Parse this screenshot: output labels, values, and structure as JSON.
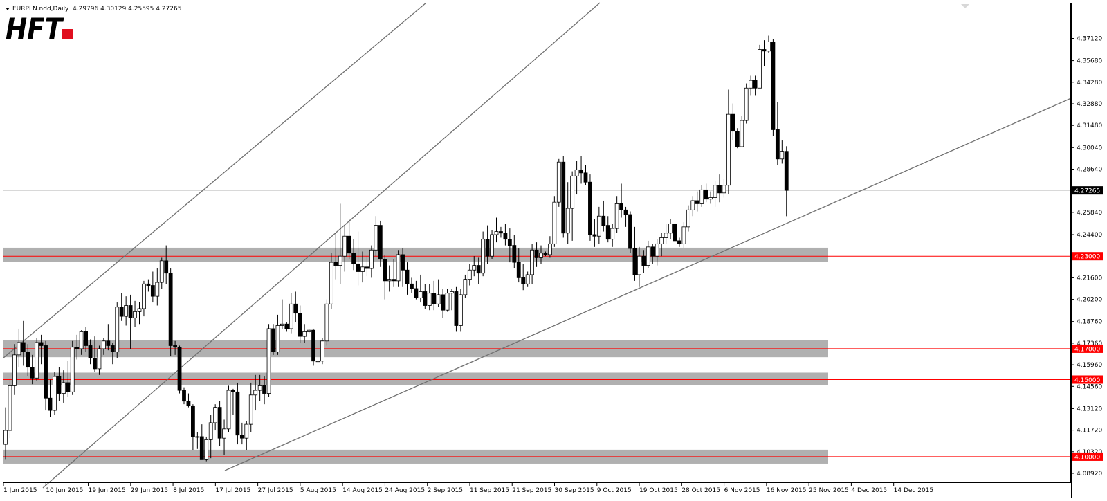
{
  "header": {
    "title": "EURPLN.ndd,Daily",
    "ohlc": "4.29796 4.30129 4.25595 4.27265"
  },
  "logo": {
    "text": "HFT"
  },
  "colors": {
    "background": "#ffffff",
    "candle_up_fill": "#ffffff",
    "candle_down_fill": "#000000",
    "candle_outline": "#000000",
    "zone": "#b0b0b0",
    "support_line": "#ff0000",
    "trendline": "#707070",
    "current_price_line": "#c0c0c0",
    "logo_text": "#000000",
    "logo_accent": "#e0101f"
  },
  "chart_data": {
    "type": "candlestick",
    "symbol": "EURPLN",
    "timeframe": "Daily",
    "ylim": [
      4.0892,
      4.3795
    ],
    "y_ticks": [
      "4.37120",
      "4.35680",
      "4.34280",
      "4.32880",
      "4.31480",
      "4.30040",
      "4.28640",
      "4.27240",
      "4.25840",
      "4.24400",
      "4.23000",
      "4.21600",
      "4.20200",
      "4.18760",
      "4.17360",
      "4.15960",
      "4.14560",
      "4.13120",
      "4.11720",
      "4.10320",
      "4.08920"
    ],
    "x_labels": [
      "1 Jun 2015",
      "10 Jun 2015",
      "19 Jun 2015",
      "29 Jun 2015",
      "8 Jul 2015",
      "17 Jul 2015",
      "27 Jul 2015",
      "5 Aug 2015",
      "14 Aug 2015",
      "24 Aug 2015",
      "2 Sep 2015",
      "11 Sep 2015",
      "21 Sep 2015",
      "30 Sep 2015",
      "9 Oct 2015",
      "19 Oct 2015",
      "28 Oct 2015",
      "6 Nov 2015",
      "16 Nov 2015",
      "25 Nov 2015",
      "4 Dec 2015",
      "14 Dec 2015"
    ],
    "current_price": {
      "label": "4.27265",
      "value": 4.27265
    },
    "levels": [
      {
        "label": "4.23000",
        "value": 4.23
      },
      {
        "label": "4.17000",
        "value": 4.17
      },
      {
        "label": "4.15000",
        "value": 4.15
      },
      {
        "label": "4.10000",
        "value": 4.1
      }
    ],
    "zones": [
      {
        "from": 4.2265,
        "to": 4.2355
      },
      {
        "from": 4.1645,
        "to": 4.1755
      },
      {
        "from": 4.1465,
        "to": 4.1545
      },
      {
        "from": 4.0955,
        "to": 4.1045
      }
    ],
    "candles": [
      {
        "o": 4.108,
        "h": 4.132,
        "l": 4.098,
        "c": 4.117
      },
      {
        "o": 4.117,
        "h": 4.15,
        "l": 4.112,
        "c": 4.146
      },
      {
        "o": 4.146,
        "h": 4.173,
        "l": 4.14,
        "c": 4.166
      },
      {
        "o": 4.166,
        "h": 4.183,
        "l": 4.158,
        "c": 4.174
      },
      {
        "o": 4.174,
        "h": 4.188,
        "l": 4.159,
        "c": 4.168
      },
      {
        "o": 4.168,
        "h": 4.173,
        "l": 4.152,
        "c": 4.158
      },
      {
        "o": 4.158,
        "h": 4.166,
        "l": 4.147,
        "c": 4.151
      },
      {
        "o": 4.151,
        "h": 4.177,
        "l": 4.149,
        "c": 4.174
      },
      {
        "o": 4.174,
        "h": 4.179,
        "l": 4.16,
        "c": 4.172
      },
      {
        "o": 4.172,
        "h": 4.175,
        "l": 4.13,
        "c": 4.138
      },
      {
        "o": 4.138,
        "h": 4.15,
        "l": 4.126,
        "c": 4.13
      },
      {
        "o": 4.13,
        "h": 4.155,
        "l": 4.127,
        "c": 4.152
      },
      {
        "o": 4.152,
        "h": 4.158,
        "l": 4.136,
        "c": 4.141
      },
      {
        "o": 4.141,
        "h": 4.156,
        "l": 4.135,
        "c": 4.148
      },
      {
        "o": 4.148,
        "h": 4.162,
        "l": 4.139,
        "c": 4.142
      },
      {
        "o": 4.142,
        "h": 4.175,
        "l": 4.14,
        "c": 4.171
      },
      {
        "o": 4.171,
        "h": 4.179,
        "l": 4.163,
        "c": 4.17
      },
      {
        "o": 4.17,
        "h": 4.182,
        "l": 4.166,
        "c": 4.181
      },
      {
        "o": 4.181,
        "h": 4.184,
        "l": 4.168,
        "c": 4.172
      },
      {
        "o": 4.172,
        "h": 4.176,
        "l": 4.16,
        "c": 4.164
      },
      {
        "o": 4.164,
        "h": 4.178,
        "l": 4.155,
        "c": 4.157
      },
      {
        "o": 4.157,
        "h": 4.172,
        "l": 4.153,
        "c": 4.17
      },
      {
        "o": 4.17,
        "h": 4.177,
        "l": 4.166,
        "c": 4.175
      },
      {
        "o": 4.175,
        "h": 4.186,
        "l": 4.169,
        "c": 4.172
      },
      {
        "o": 4.172,
        "h": 4.174,
        "l": 4.16,
        "c": 4.168
      },
      {
        "o": 4.168,
        "h": 4.2,
        "l": 4.164,
        "c": 4.197
      },
      {
        "o": 4.197,
        "h": 4.206,
        "l": 4.188,
        "c": 4.191
      },
      {
        "o": 4.191,
        "h": 4.204,
        "l": 4.185,
        "c": 4.198
      },
      {
        "o": 4.198,
        "h": 4.205,
        "l": 4.17,
        "c": 4.19
      },
      {
        "o": 4.19,
        "h": 4.201,
        "l": 4.184,
        "c": 4.194
      },
      {
        "o": 4.194,
        "h": 4.2,
        "l": 4.186,
        "c": 4.196
      },
      {
        "o": 4.196,
        "h": 4.214,
        "l": 4.191,
        "c": 4.212
      },
      {
        "o": 4.212,
        "h": 4.215,
        "l": 4.207,
        "c": 4.211
      },
      {
        "o": 4.211,
        "h": 4.22,
        "l": 4.2,
        "c": 4.204
      },
      {
        "o": 4.204,
        "h": 4.222,
        "l": 4.198,
        "c": 4.213
      },
      {
        "o": 4.213,
        "h": 4.229,
        "l": 4.209,
        "c": 4.227
      },
      {
        "o": 4.227,
        "h": 4.237,
        "l": 4.212,
        "c": 4.219
      },
      {
        "o": 4.219,
        "h": 4.222,
        "l": 4.165,
        "c": 4.172
      },
      {
        "o": 4.172,
        "h": 4.175,
        "l": 4.166,
        "c": 4.171
      },
      {
        "o": 4.171,
        "h": 4.172,
        "l": 4.141,
        "c": 4.143
      },
      {
        "o": 4.143,
        "h": 4.145,
        "l": 4.134,
        "c": 4.136
      },
      {
        "o": 4.136,
        "h": 4.141,
        "l": 4.132,
        "c": 4.133
      },
      {
        "o": 4.133,
        "h": 4.134,
        "l": 4.104,
        "c": 4.113
      },
      {
        "o": 4.113,
        "h": 4.116,
        "l": 4.105,
        "c": 4.113
      },
      {
        "o": 4.113,
        "h": 4.121,
        "l": 4.098,
        "c": 4.098
      },
      {
        "o": 4.098,
        "h": 4.113,
        "l": 4.097,
        "c": 4.111
      },
      {
        "o": 4.111,
        "h": 4.127,
        "l": 4.099,
        "c": 4.122
      },
      {
        "o": 4.122,
        "h": 4.134,
        "l": 4.117,
        "c": 4.132
      },
      {
        "o": 4.132,
        "h": 4.136,
        "l": 4.107,
        "c": 4.112
      },
      {
        "o": 4.112,
        "h": 4.124,
        "l": 4.101,
        "c": 4.118
      },
      {
        "o": 4.118,
        "h": 4.146,
        "l": 4.116,
        "c": 4.143
      },
      {
        "o": 4.143,
        "h": 4.144,
        "l": 4.127,
        "c": 4.142
      },
      {
        "o": 4.142,
        "h": 4.148,
        "l": 4.108,
        "c": 4.114
      },
      {
        "o": 4.114,
        "h": 4.122,
        "l": 4.108,
        "c": 4.112
      },
      {
        "o": 4.112,
        "h": 4.123,
        "l": 4.104,
        "c": 4.121
      },
      {
        "o": 4.121,
        "h": 4.148,
        "l": 4.116,
        "c": 4.14
      },
      {
        "o": 4.14,
        "h": 4.153,
        "l": 4.13,
        "c": 4.143
      },
      {
        "o": 4.143,
        "h": 4.153,
        "l": 4.136,
        "c": 4.146
      },
      {
        "o": 4.146,
        "h": 4.152,
        "l": 4.134,
        "c": 4.141
      },
      {
        "o": 4.141,
        "h": 4.186,
        "l": 4.139,
        "c": 4.183
      },
      {
        "o": 4.183,
        "h": 4.186,
        "l": 4.166,
        "c": 4.168
      },
      {
        "o": 4.168,
        "h": 4.192,
        "l": 4.166,
        "c": 4.185
      },
      {
        "o": 4.185,
        "h": 4.202,
        "l": 4.183,
        "c": 4.186
      },
      {
        "o": 4.186,
        "h": 4.187,
        "l": 4.181,
        "c": 4.183
      },
      {
        "o": 4.183,
        "h": 4.206,
        "l": 4.18,
        "c": 4.199
      },
      {
        "o": 4.199,
        "h": 4.207,
        "l": 4.187,
        "c": 4.193
      },
      {
        "o": 4.193,
        "h": 4.198,
        "l": 4.174,
        "c": 4.178
      },
      {
        "o": 4.178,
        "h": 4.186,
        "l": 4.174,
        "c": 4.181
      },
      {
        "o": 4.181,
        "h": 4.183,
        "l": 4.18,
        "c": 4.182
      },
      {
        "o": 4.182,
        "h": 4.183,
        "l": 4.159,
        "c": 4.162
      },
      {
        "o": 4.162,
        "h": 4.17,
        "l": 4.158,
        "c": 4.162
      },
      {
        "o": 4.162,
        "h": 4.177,
        "l": 4.16,
        "c": 4.175
      },
      {
        "o": 4.175,
        "h": 4.202,
        "l": 4.172,
        "c": 4.199
      },
      {
        "o": 4.199,
        "h": 4.232,
        "l": 4.196,
        "c": 4.226
      },
      {
        "o": 4.226,
        "h": 4.245,
        "l": 4.215,
        "c": 4.224
      },
      {
        "o": 4.224,
        "h": 4.264,
        "l": 4.212,
        "c": 4.23
      },
      {
        "o": 4.23,
        "h": 4.25,
        "l": 4.22,
        "c": 4.243
      },
      {
        "o": 4.243,
        "h": 4.254,
        "l": 4.228,
        "c": 4.232
      },
      {
        "o": 4.232,
        "h": 4.241,
        "l": 4.221,
        "c": 4.225
      },
      {
        "o": 4.225,
        "h": 4.246,
        "l": 4.211,
        "c": 4.22
      },
      {
        "o": 4.22,
        "h": 4.233,
        "l": 4.213,
        "c": 4.223
      },
      {
        "o": 4.223,
        "h": 4.23,
        "l": 4.217,
        "c": 4.222
      },
      {
        "o": 4.222,
        "h": 4.237,
        "l": 4.216,
        "c": 4.234
      },
      {
        "o": 4.234,
        "h": 4.256,
        "l": 4.23,
        "c": 4.25
      },
      {
        "o": 4.25,
        "h": 4.253,
        "l": 4.223,
        "c": 4.228
      },
      {
        "o": 4.228,
        "h": 4.231,
        "l": 4.202,
        "c": 4.214
      },
      {
        "o": 4.214,
        "h": 4.224,
        "l": 4.207,
        "c": 4.215
      },
      {
        "o": 4.215,
        "h": 4.228,
        "l": 4.21,
        "c": 4.214
      },
      {
        "o": 4.214,
        "h": 4.234,
        "l": 4.21,
        "c": 4.231
      },
      {
        "o": 4.231,
        "h": 4.235,
        "l": 4.21,
        "c": 4.221
      },
      {
        "o": 4.221,
        "h": 4.226,
        "l": 4.205,
        "c": 4.212
      },
      {
        "o": 4.212,
        "h": 4.216,
        "l": 4.206,
        "c": 4.209
      },
      {
        "o": 4.209,
        "h": 4.214,
        "l": 4.202,
        "c": 4.203
      },
      {
        "o": 4.203,
        "h": 4.218,
        "l": 4.2,
        "c": 4.207
      },
      {
        "o": 4.207,
        "h": 4.212,
        "l": 4.196,
        "c": 4.198
      },
      {
        "o": 4.198,
        "h": 4.212,
        "l": 4.195,
        "c": 4.206
      },
      {
        "o": 4.206,
        "h": 4.214,
        "l": 4.195,
        "c": 4.199
      },
      {
        "o": 4.199,
        "h": 4.215,
        "l": 4.197,
        "c": 4.205
      },
      {
        "o": 4.205,
        "h": 4.209,
        "l": 4.19,
        "c": 4.195
      },
      {
        "o": 4.195,
        "h": 4.209,
        "l": 4.194,
        "c": 4.206
      },
      {
        "o": 4.206,
        "h": 4.209,
        "l": 4.195,
        "c": 4.207
      },
      {
        "o": 4.207,
        "h": 4.21,
        "l": 4.181,
        "c": 4.185
      },
      {
        "o": 4.185,
        "h": 4.209,
        "l": 4.181,
        "c": 4.205
      },
      {
        "o": 4.205,
        "h": 4.218,
        "l": 4.203,
        "c": 4.215
      },
      {
        "o": 4.215,
        "h": 4.225,
        "l": 4.211,
        "c": 4.221
      },
      {
        "o": 4.221,
        "h": 4.23,
        "l": 4.217,
        "c": 4.224
      },
      {
        "o": 4.224,
        "h": 4.229,
        "l": 4.212,
        "c": 4.219
      },
      {
        "o": 4.219,
        "h": 4.246,
        "l": 4.217,
        "c": 4.241
      },
      {
        "o": 4.241,
        "h": 4.25,
        "l": 4.225,
        "c": 4.23
      },
      {
        "o": 4.23,
        "h": 4.247,
        "l": 4.228,
        "c": 4.244
      },
      {
        "o": 4.244,
        "h": 4.255,
        "l": 4.239,
        "c": 4.246
      },
      {
        "o": 4.246,
        "h": 4.249,
        "l": 4.242,
        "c": 4.245
      },
      {
        "o": 4.245,
        "h": 4.251,
        "l": 4.237,
        "c": 4.241
      },
      {
        "o": 4.241,
        "h": 4.248,
        "l": 4.226,
        "c": 4.237
      },
      {
        "o": 4.237,
        "h": 4.244,
        "l": 4.222,
        "c": 4.226
      },
      {
        "o": 4.226,
        "h": 4.235,
        "l": 4.213,
        "c": 4.216
      },
      {
        "o": 4.216,
        "h": 4.225,
        "l": 4.208,
        "c": 4.212
      },
      {
        "o": 4.212,
        "h": 4.22,
        "l": 4.21,
        "c": 4.218
      },
      {
        "o": 4.218,
        "h": 4.238,
        "l": 4.212,
        "c": 4.234
      },
      {
        "o": 4.234,
        "h": 4.239,
        "l": 4.223,
        "c": 4.229
      },
      {
        "o": 4.229,
        "h": 4.237,
        "l": 4.225,
        "c": 4.232
      },
      {
        "o": 4.232,
        "h": 4.233,
        "l": 4.23,
        "c": 4.231
      },
      {
        "o": 4.231,
        "h": 4.243,
        "l": 4.229,
        "c": 4.238
      },
      {
        "o": 4.238,
        "h": 4.269,
        "l": 4.236,
        "c": 4.265
      },
      {
        "o": 4.265,
        "h": 4.293,
        "l": 4.262,
        "c": 4.291
      },
      {
        "o": 4.291,
        "h": 4.295,
        "l": 4.242,
        "c": 4.245
      },
      {
        "o": 4.245,
        "h": 4.278,
        "l": 4.238,
        "c": 4.261
      },
      {
        "o": 4.261,
        "h": 4.285,
        "l": 4.24,
        "c": 4.282
      },
      {
        "o": 4.282,
        "h": 4.292,
        "l": 4.27,
        "c": 4.286
      },
      {
        "o": 4.286,
        "h": 4.295,
        "l": 4.277,
        "c": 4.284
      },
      {
        "o": 4.284,
        "h": 4.289,
        "l": 4.276,
        "c": 4.278
      },
      {
        "o": 4.278,
        "h": 4.283,
        "l": 4.24,
        "c": 4.244
      },
      {
        "o": 4.244,
        "h": 4.254,
        "l": 4.236,
        "c": 4.243
      },
      {
        "o": 4.243,
        "h": 4.262,
        "l": 4.238,
        "c": 4.256
      },
      {
        "o": 4.256,
        "h": 4.266,
        "l": 4.246,
        "c": 4.25
      },
      {
        "o": 4.25,
        "h": 4.256,
        "l": 4.239,
        "c": 4.241
      },
      {
        "o": 4.241,
        "h": 4.251,
        "l": 4.236,
        "c": 4.248
      },
      {
        "o": 4.248,
        "h": 4.269,
        "l": 4.245,
        "c": 4.264
      },
      {
        "o": 4.264,
        "h": 4.277,
        "l": 4.255,
        "c": 4.26
      },
      {
        "o": 4.26,
        "h": 4.262,
        "l": 4.249,
        "c": 4.257
      },
      {
        "o": 4.257,
        "h": 4.259,
        "l": 4.232,
        "c": 4.235
      },
      {
        "o": 4.235,
        "h": 4.249,
        "l": 4.214,
        "c": 4.218
      },
      {
        "o": 4.218,
        "h": 4.236,
        "l": 4.21,
        "c": 4.23
      },
      {
        "o": 4.23,
        "h": 4.234,
        "l": 4.219,
        "c": 4.224
      },
      {
        "o": 4.224,
        "h": 4.24,
        "l": 4.222,
        "c": 4.236
      },
      {
        "o": 4.236,
        "h": 4.238,
        "l": 4.225,
        "c": 4.23
      },
      {
        "o": 4.23,
        "h": 4.241,
        "l": 4.224,
        "c": 4.238
      },
      {
        "o": 4.238,
        "h": 4.245,
        "l": 4.23,
        "c": 4.242
      },
      {
        "o": 4.242,
        "h": 4.251,
        "l": 4.238,
        "c": 4.245
      },
      {
        "o": 4.245,
        "h": 4.254,
        "l": 4.241,
        "c": 4.251
      },
      {
        "o": 4.251,
        "h": 4.256,
        "l": 4.237,
        "c": 4.24
      },
      {
        "o": 4.24,
        "h": 4.242,
        "l": 4.236,
        "c": 4.238
      },
      {
        "o": 4.238,
        "h": 4.252,
        "l": 4.235,
        "c": 4.249
      },
      {
        "o": 4.249,
        "h": 4.263,
        "l": 4.246,
        "c": 4.26
      },
      {
        "o": 4.26,
        "h": 4.269,
        "l": 4.256,
        "c": 4.266
      },
      {
        "o": 4.266,
        "h": 4.272,
        "l": 4.259,
        "c": 4.264
      },
      {
        "o": 4.264,
        "h": 4.276,
        "l": 4.262,
        "c": 4.273
      },
      {
        "o": 4.273,
        "h": 4.277,
        "l": 4.265,
        "c": 4.267
      },
      {
        "o": 4.267,
        "h": 4.272,
        "l": 4.264,
        "c": 4.268
      },
      {
        "o": 4.268,
        "h": 4.279,
        "l": 4.262,
        "c": 4.276
      },
      {
        "o": 4.276,
        "h": 4.283,
        "l": 4.265,
        "c": 4.271
      },
      {
        "o": 4.271,
        "h": 4.28,
        "l": 4.268,
        "c": 4.276
      },
      {
        "o": 4.276,
        "h": 4.338,
        "l": 4.27,
        "c": 4.322
      },
      {
        "o": 4.322,
        "h": 4.329,
        "l": 4.305,
        "c": 4.311
      },
      {
        "o": 4.311,
        "h": 4.313,
        "l": 4.3,
        "c": 4.301
      },
      {
        "o": 4.301,
        "h": 4.321,
        "l": 4.301,
        "c": 4.318
      },
      {
        "o": 4.318,
        "h": 4.342,
        "l": 4.316,
        "c": 4.339
      },
      {
        "o": 4.339,
        "h": 4.347,
        "l": 4.334,
        "c": 4.344
      },
      {
        "o": 4.344,
        "h": 4.347,
        "l": 4.334,
        "c": 4.339
      },
      {
        "o": 4.339,
        "h": 4.367,
        "l": 4.339,
        "c": 4.364
      },
      {
        "o": 4.364,
        "h": 4.37,
        "l": 4.353,
        "c": 4.363
      },
      {
        "o": 4.363,
        "h": 4.373,
        "l": 4.362,
        "c": 4.369
      },
      {
        "o": 4.369,
        "h": 4.371,
        "l": 4.308,
        "c": 4.312
      },
      {
        "o": 4.312,
        "h": 4.33,
        "l": 4.289,
        "c": 4.293
      },
      {
        "o": 4.293,
        "h": 4.305,
        "l": 4.29,
        "c": 4.298
      },
      {
        "o": 4.29796,
        "h": 4.30129,
        "l": 4.25595,
        "c": 4.27265
      }
    ]
  }
}
